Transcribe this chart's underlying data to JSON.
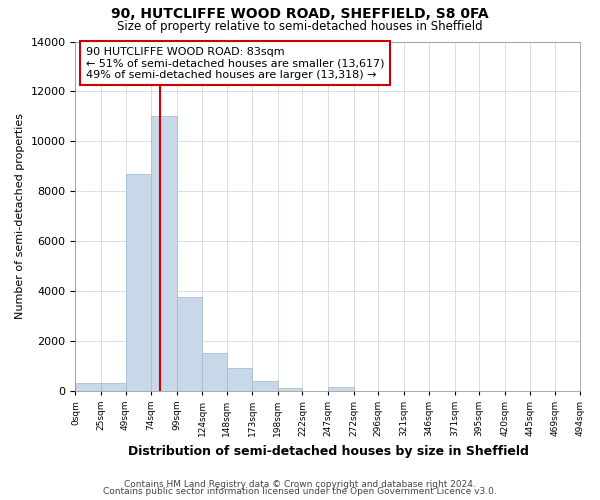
{
  "title1": "90, HUTCLIFFE WOOD ROAD, SHEFFIELD, S8 0FA",
  "title2": "Size of property relative to semi-detached houses in Sheffield",
  "xlabel": "Distribution of semi-detached houses by size in Sheffield",
  "ylabel": "Number of semi-detached properties",
  "bins": [
    0,
    25,
    49,
    74,
    99,
    124,
    148,
    173,
    198,
    222,
    247,
    272,
    296,
    321,
    346,
    371,
    395,
    420,
    445,
    469,
    494
  ],
  "counts": [
    300,
    300,
    8700,
    11000,
    3750,
    1500,
    900,
    380,
    130,
    0,
    150,
    0,
    0,
    0,
    0,
    0,
    0,
    0,
    0,
    0
  ],
  "bar_color": "#c8d8e8",
  "bar_edgecolor": "#a0b8cc",
  "property_sqm": 83,
  "vline_color": "#cc0000",
  "annotation_text": "90 HUTCLIFFE WOOD ROAD: 83sqm\n← 51% of semi-detached houses are smaller (13,617)\n49% of semi-detached houses are larger (13,318) →",
  "annotation_box_color": "white",
  "annotation_box_edgecolor": "#cc0000",
  "ylim": [
    0,
    14000
  ],
  "yticks": [
    0,
    2000,
    4000,
    6000,
    8000,
    10000,
    12000,
    14000
  ],
  "xtick_labels": [
    "0sqm",
    "25sqm",
    "49sqm",
    "74sqm",
    "99sqm",
    "124sqm",
    "148sqm",
    "173sqm",
    "198sqm",
    "222sqm",
    "247sqm",
    "272sqm",
    "296sqm",
    "321sqm",
    "346sqm",
    "371sqm",
    "395sqm",
    "420sqm",
    "445sqm",
    "469sqm",
    "494sqm"
  ],
  "footer1": "Contains HM Land Registry data © Crown copyright and database right 2024.",
  "footer2": "Contains public sector information licensed under the Open Government Licence v3.0."
}
